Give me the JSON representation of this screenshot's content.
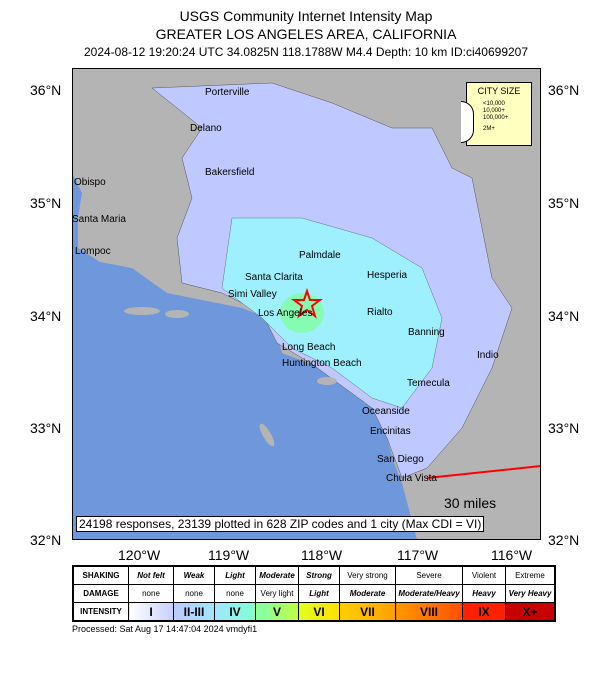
{
  "header": {
    "line1": "USGS Community Internet Intensity Map",
    "line2": "GREATER LOS ANGELES AREA, CALIFORNIA",
    "line3": "2024-08-12 19:20:24 UTC 34.0825N 118.1788W M4.4 Depth: 10 km ID:ci40699207"
  },
  "axes": {
    "lat": [
      "36°N",
      "35°N",
      "34°N",
      "33°N",
      "32°N"
    ],
    "lon": [
      "120°W",
      "119°W",
      "118°W",
      "117°W",
      "116°W"
    ]
  },
  "cities": [
    "Porterville",
    "Delano",
    "Bakersfield",
    "Obispo",
    "Santa Maria",
    "Lompoc",
    "Palmdale",
    "Santa Clarita",
    "Hesperia",
    "Simi Valley",
    "Los Angeles",
    "Rialto",
    "Banning",
    "Long Beach",
    "Huntington Beach",
    "Indio",
    "Temecula",
    "Oceanside",
    "Encinitas",
    "San Diego",
    "Chula Vista"
  ],
  "city_size": {
    "title": "CITY SIZE",
    "items": [
      "<10,000",
      "10,000+",
      "100,000+",
      "2M+"
    ]
  },
  "stats": "24198 responses, 23139 plotted in 628 ZIP codes and 1 city (Max CDI = VI)",
  "scale": "30 miles",
  "colors": {
    "ocean": "#6f98dc",
    "land": "#b4b4b4",
    "cdi_ii_iii": "#bfc9ff",
    "cdi_iv": "#9ef0ff",
    "cdi_v": "#80ffa0",
    "epicenter": "#ff0000"
  },
  "legend": {
    "shaking": {
      "label": "SHAKING",
      "values": [
        "Not felt",
        "Weak",
        "Light",
        "Moderate",
        "Strong",
        "Very strong",
        "Severe",
        "Violent",
        "Extreme"
      ]
    },
    "damage": {
      "label": "DAMAGE",
      "values": [
        "none",
        "none",
        "none",
        "Very light",
        "Light",
        "Moderate",
        "Moderate/Heavy",
        "Heavy",
        "Very Heavy"
      ]
    },
    "intensity": {
      "label": "INTENSITY",
      "values": [
        "I",
        "II-III",
        "IV",
        "V",
        "VI",
        "VII",
        "VIII",
        "IX",
        "X+"
      ]
    }
  },
  "processed": "Processed: Sat Aug 17 14:47:04 2024 vmdyfi1"
}
